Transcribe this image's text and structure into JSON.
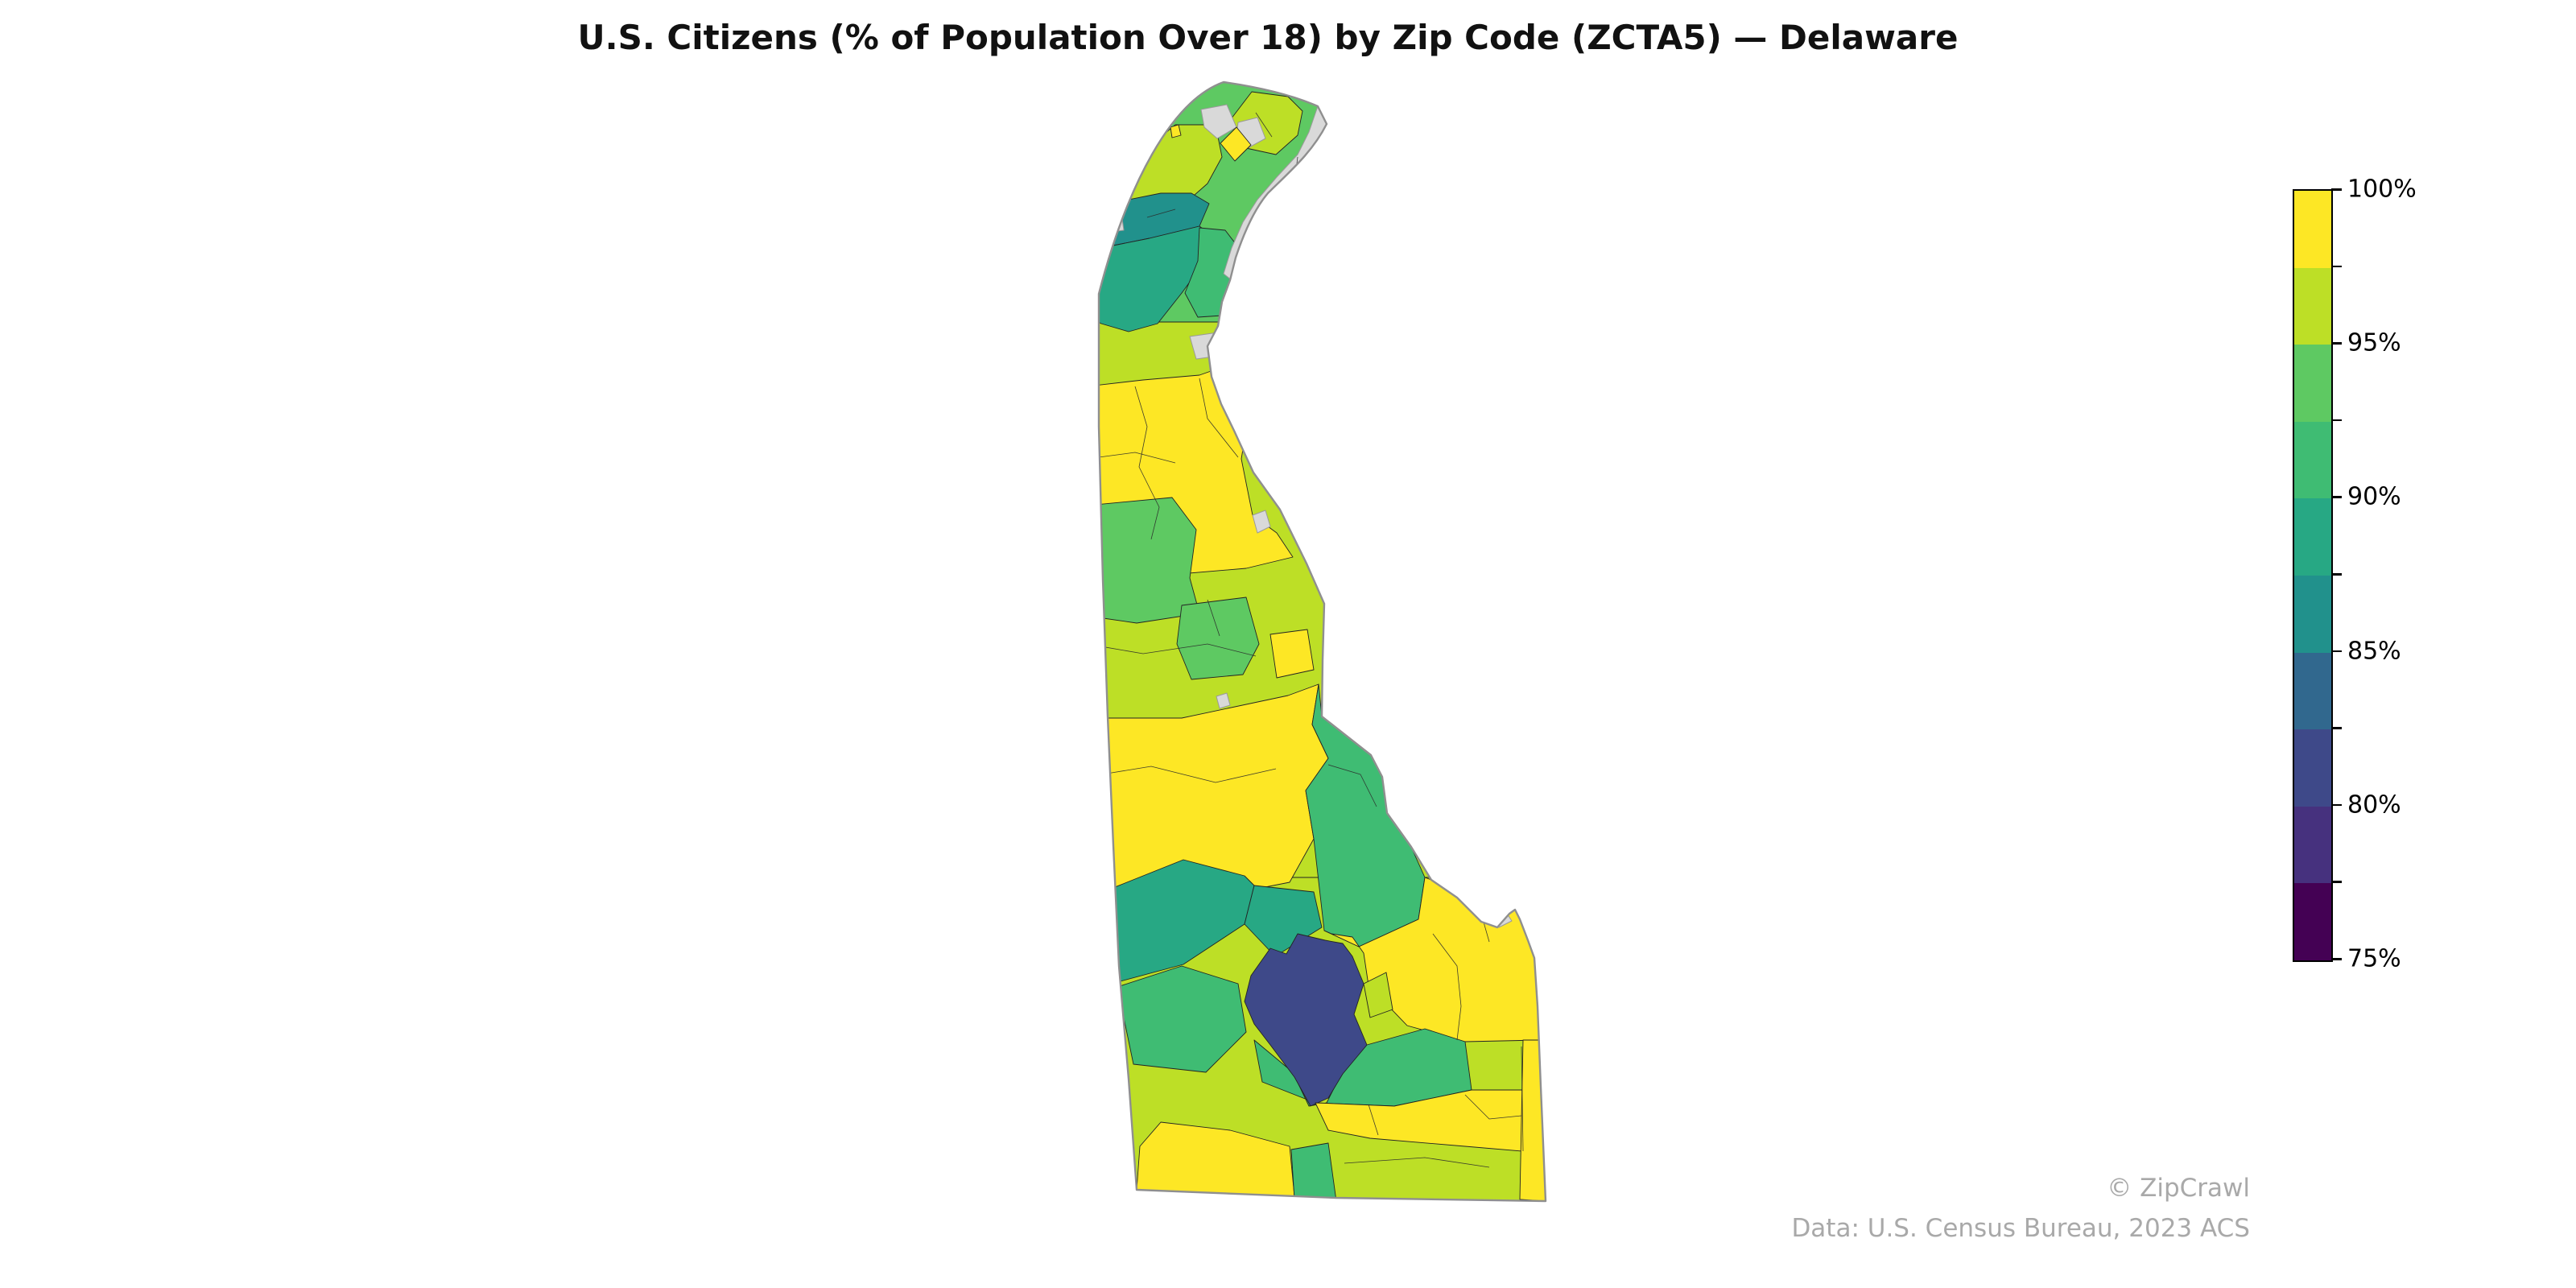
{
  "title": "U.S. Citizens (% of Population Over 18) by Zip Code (ZCTA5) — Delaware",
  "colorbar": {
    "tick_labels": [
      "100%",
      "95%",
      "90%",
      "85%",
      "80%",
      "75%"
    ],
    "bin_colors_top_down": [
      "#fde725",
      "#bddf26",
      "#5ec962",
      "#3fbc73",
      "#27a884",
      "#21918c",
      "#31688e",
      "#3e4989",
      "#46317e",
      "#440154"
    ]
  },
  "attribution": {
    "line1": "© ZipCrawl",
    "line2": "Data: U.S. Census Bureau, 2023 ACS"
  },
  "map": {
    "state": "Delaware",
    "no_data_color": "#d9d9d9",
    "zcta_border_color": "#232323",
    "state_outline_color": "#8f8f8f"
  },
  "chart_data": {
    "type": "choropleth",
    "title": "U.S. Citizens (% of Population Over 18) by Zip Code (ZCTA5) — Delaware",
    "geography": "Delaware ZCTA5 zip code areas",
    "legend_position": "right",
    "colorbar_range": [
      75,
      100
    ],
    "colorbar_tick_percent": [
      75,
      80,
      85,
      90,
      95,
      100
    ],
    "bin_size_percent": 2.5,
    "bins": [
      {
        "range": "97.5–100%",
        "color": "#fde725"
      },
      {
        "range": "95–97.5%",
        "color": "#bddf26"
      },
      {
        "range": "92.5–95%",
        "color": "#5ec962"
      },
      {
        "range": "90–92.5%",
        "color": "#3fbc73"
      },
      {
        "range": "87.5–90%",
        "color": "#27a884"
      },
      {
        "range": "85–87.5%",
        "color": "#21918c"
      },
      {
        "range": "82.5–85%",
        "color": "#31688e"
      },
      {
        "range": "80–82.5%",
        "color": "#3e4989"
      },
      {
        "range": "77.5–80%",
        "color": "#46317e"
      },
      {
        "range": "75–77.5%",
        "color": "#440154"
      }
    ],
    "no_data_color": "#d9d9d9",
    "regions": {
      "north-base": 2,
      "mid-base": 1,
      "south-base": 1,
      "arc-west": 1,
      "arc-northeast": 1,
      "teal-upper-wilmington": 5,
      "teal-lower-newport": 4,
      "green-east-of-teal": 3,
      "yellow-middletown": 0,
      "green-clayton": 2,
      "green-dover": 2,
      "yellow-dover-afb": 0,
      "yellow-west-kent": 0,
      "green-kent-coast": 3,
      "teal-greenwood": 4,
      "teal-ellendale": 4,
      "yellow-lewes-coast": 0,
      "green-west-of-navy": 3,
      "green-south-band": 3,
      "navy-georgetown": 7,
      "yg-navy-east": 1,
      "yellow-millsboro": 0,
      "yellow-southwest": 0,
      "green-bottom-strip": 3,
      "yellow-beach-strip": 0,
      "yellow-diamond": 0,
      "yellow-dot-west": 0,
      "yellow-dot-elsmere": 0,
      "gray-riverfront": "nd",
      "gray-blob-1": "nd",
      "gray-blob-2": "nd",
      "gray-elsmere": "nd",
      "gray-delaware-city": "nd",
      "gray-islet": "nd",
      "gray-dover-tiny": "nd",
      "gray-cape": "nd"
    }
  }
}
